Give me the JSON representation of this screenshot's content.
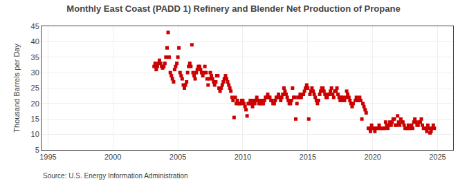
{
  "chart_data": {
    "type": "scatter",
    "title": "Monthly East Coast (PADD 1) Refinery and Blender Net Production of Propane",
    "ylabel": "Thousand Barrels per Day",
    "annotations": [
      {
        "text": "Source: U.S. Energy Information Administration"
      }
    ],
    "xlim": [
      1994.5,
      2026.2
    ],
    "ylim": [
      5,
      45
    ],
    "xticks": [
      1995,
      2000,
      2005,
      2010,
      2015,
      2020,
      2025
    ],
    "yticks": [
      5,
      10,
      15,
      20,
      25,
      30,
      35,
      40,
      45
    ],
    "grid": true,
    "color": "#CC0000",
    "marker": "square",
    "x": [
      2003.17,
      2003.25,
      2003.33,
      2003.42,
      2003.5,
      2003.58,
      2003.67,
      2003.75,
      2003.83,
      2003.92,
      2004.0,
      2004.08,
      2004.17,
      2004.25,
      2004.33,
      2004.42,
      2004.5,
      2004.58,
      2004.67,
      2004.75,
      2004.83,
      2004.92,
      2005.0,
      2005.08,
      2005.17,
      2005.25,
      2005.33,
      2005.42,
      2005.5,
      2005.58,
      2005.67,
      2005.75,
      2005.83,
      2005.92,
      2006.0,
      2006.08,
      2006.17,
      2006.25,
      2006.33,
      2006.42,
      2006.5,
      2006.58,
      2006.67,
      2006.75,
      2006.83,
      2006.92,
      2007.0,
      2007.08,
      2007.17,
      2007.25,
      2007.33,
      2007.42,
      2007.5,
      2007.58,
      2007.67,
      2007.75,
      2007.83,
      2007.92,
      2008.0,
      2008.08,
      2008.17,
      2008.25,
      2008.33,
      2008.42,
      2008.5,
      2008.58,
      2008.67,
      2008.75,
      2008.83,
      2008.92,
      2009.0,
      2009.08,
      2009.17,
      2009.25,
      2009.33,
      2009.42,
      2009.5,
      2009.58,
      2009.67,
      2009.75,
      2009.83,
      2009.92,
      2010.0,
      2010.08,
      2010.17,
      2010.25,
      2010.33,
      2010.42,
      2010.5,
      2010.58,
      2010.67,
      2010.75,
      2010.83,
      2010.92,
      2011.0,
      2011.08,
      2011.17,
      2011.25,
      2011.33,
      2011.42,
      2011.5,
      2011.58,
      2011.67,
      2011.75,
      2011.83,
      2011.92,
      2012.0,
      2012.08,
      2012.17,
      2012.25,
      2012.33,
      2012.42,
      2012.5,
      2012.58,
      2012.67,
      2012.75,
      2012.83,
      2012.92,
      2013.0,
      2013.08,
      2013.17,
      2013.25,
      2013.33,
      2013.42,
      2013.5,
      2013.58,
      2013.67,
      2013.75,
      2013.83,
      2013.92,
      2014.0,
      2014.08,
      2014.17,
      2014.25,
      2014.33,
      2014.42,
      2014.5,
      2014.58,
      2014.67,
      2014.75,
      2014.83,
      2014.92,
      2015.0,
      2015.08,
      2015.17,
      2015.25,
      2015.33,
      2015.42,
      2015.5,
      2015.58,
      2015.67,
      2015.75,
      2015.83,
      2015.92,
      2016.0,
      2016.08,
      2016.17,
      2016.25,
      2016.33,
      2016.42,
      2016.5,
      2016.58,
      2016.67,
      2016.75,
      2016.83,
      2016.92,
      2017.0,
      2017.08,
      2017.17,
      2017.25,
      2017.33,
      2017.42,
      2017.5,
      2017.58,
      2017.67,
      2017.75,
      2017.83,
      2017.92,
      2018.0,
      2018.08,
      2018.17,
      2018.25,
      2018.33,
      2018.42,
      2018.5,
      2018.67,
      2018.75,
      2018.83,
      2018.92,
      2019.0,
      2019.08,
      2019.17,
      2019.25,
      2019.33,
      2019.42,
      2019.5,
      2019.67,
      2019.75,
      2019.83,
      2019.92,
      2020.0,
      2020.08,
      2020.17,
      2020.25,
      2020.33,
      2020.42,
      2020.5,
      2020.58,
      2020.67,
      2020.75,
      2020.83,
      2020.92,
      2021.0,
      2021.08,
      2021.17,
      2021.25,
      2021.33,
      2021.42,
      2021.5,
      2021.58,
      2021.67,
      2021.75,
      2021.83,
      2021.92,
      2022.0,
      2022.08,
      2022.17,
      2022.25,
      2022.33,
      2022.42,
      2022.5,
      2022.58,
      2022.67,
      2022.75,
      2022.83,
      2022.92,
      2023.0,
      2023.08,
      2023.17,
      2023.25,
      2023.33,
      2023.42,
      2023.5,
      2023.58,
      2023.67,
      2023.75,
      2023.83,
      2023.92,
      2024.0,
      2024.08,
      2024.17,
      2024.25,
      2024.33,
      2024.42,
      2024.5,
      2024.58,
      2024.67,
      2024.75
    ],
    "values": [
      32.0,
      33.0,
      31.0,
      32.0,
      33.0,
      34.0,
      33.0,
      32.0,
      31.5,
      32.0,
      33.0,
      35.0,
      38.0,
      43.0,
      35.0,
      30.0,
      29.0,
      28.0,
      27.0,
      31.0,
      32.0,
      33.0,
      35.0,
      38.0,
      30.0,
      29.0,
      28.0,
      26.0,
      25.0,
      26.0,
      27.0,
      30.0,
      32.0,
      33.0,
      32.0,
      39.0,
      30.0,
      29.0,
      28.0,
      30.0,
      31.0,
      32.0,
      32.0,
      31.0,
      30.0,
      29.0,
      30.0,
      32.0,
      30.0,
      28.0,
      26.0,
      28.0,
      30.0,
      29.0,
      28.0,
      27.0,
      26.0,
      27.0,
      29.0,
      29.0,
      25.0,
      24.0,
      25.0,
      26.0,
      27.0,
      28.0,
      29.0,
      28.0,
      27.0,
      26.0,
      25.0,
      24.0,
      22.0,
      21.0,
      15.5,
      22.0,
      20.0,
      21.0,
      20.0,
      20.0,
      20.0,
      21.0,
      21.0,
      20.0,
      19.0,
      18.0,
      16.0,
      20.0,
      20.0,
      21.0,
      20.0,
      19.0,
      21.0,
      20.0,
      21.0,
      22.0,
      21.0,
      20.0,
      20.0,
      21.0,
      20.0,
      20.0,
      21.0,
      22.0,
      22.0,
      23.0,
      22.0,
      22.0,
      21.0,
      21.0,
      20.0,
      20.0,
      21.0,
      22.0,
      22.0,
      23.0,
      22.0,
      21.0,
      22.0,
      23.0,
      25.0,
      24.0,
      23.0,
      22.0,
      21.0,
      20.0,
      20.0,
      21.0,
      25.0,
      22.0,
      22.0,
      15.0,
      20.0,
      22.0,
      22.0,
      23.0,
      22.0,
      23.0,
      23.0,
      24.0,
      25.0,
      26.0,
      25.0,
      15.0,
      23.0,
      24.0,
      25.0,
      24.0,
      23.0,
      22.0,
      21.0,
      20.0,
      21.0,
      23.0,
      24.0,
      25.0,
      25.0,
      24.0,
      23.0,
      22.0,
      22.0,
      23.0,
      23.0,
      24.0,
      25.0,
      23.0,
      22.0,
      24.0,
      24.0,
      25.0,
      23.0,
      22.0,
      21.0,
      22.0,
      22.0,
      21.0,
      21.0,
      22.0,
      24.0,
      23.0,
      22.0,
      21.0,
      20.0,
      19.0,
      20.0,
      21.0,
      22.0,
      21.0,
      21.0,
      22.0,
      21.0,
      15.0,
      20.0,
      19.0,
      18.0,
      17.0,
      12.0,
      12.0,
      11.0,
      13.0,
      12.0,
      12.0,
      11.0,
      12.0,
      12.0,
      12.0,
      13.0,
      12.0,
      12.0,
      12.0,
      12.0,
      12.0,
      14.0,
      13.0,
      12.0,
      13.0,
      14.0,
      13.0,
      14.0,
      15.0,
      15.0,
      13.0,
      13.0,
      16.0,
      14.0,
      13.0,
      15.0,
      14.0,
      14.0,
      13.0,
      12.0,
      12.0,
      12.0,
      13.0,
      12.0,
      12.0,
      13.0,
      12.0,
      14.0,
      15.0,
      14.0,
      13.0,
      13.0,
      14.0,
      14.0,
      15.0,
      13.0,
      12.0,
      12.0,
      12.0,
      11.0,
      13.0,
      12.0,
      10.5,
      11.0,
      12.0,
      13.0,
      12.0
    ]
  }
}
